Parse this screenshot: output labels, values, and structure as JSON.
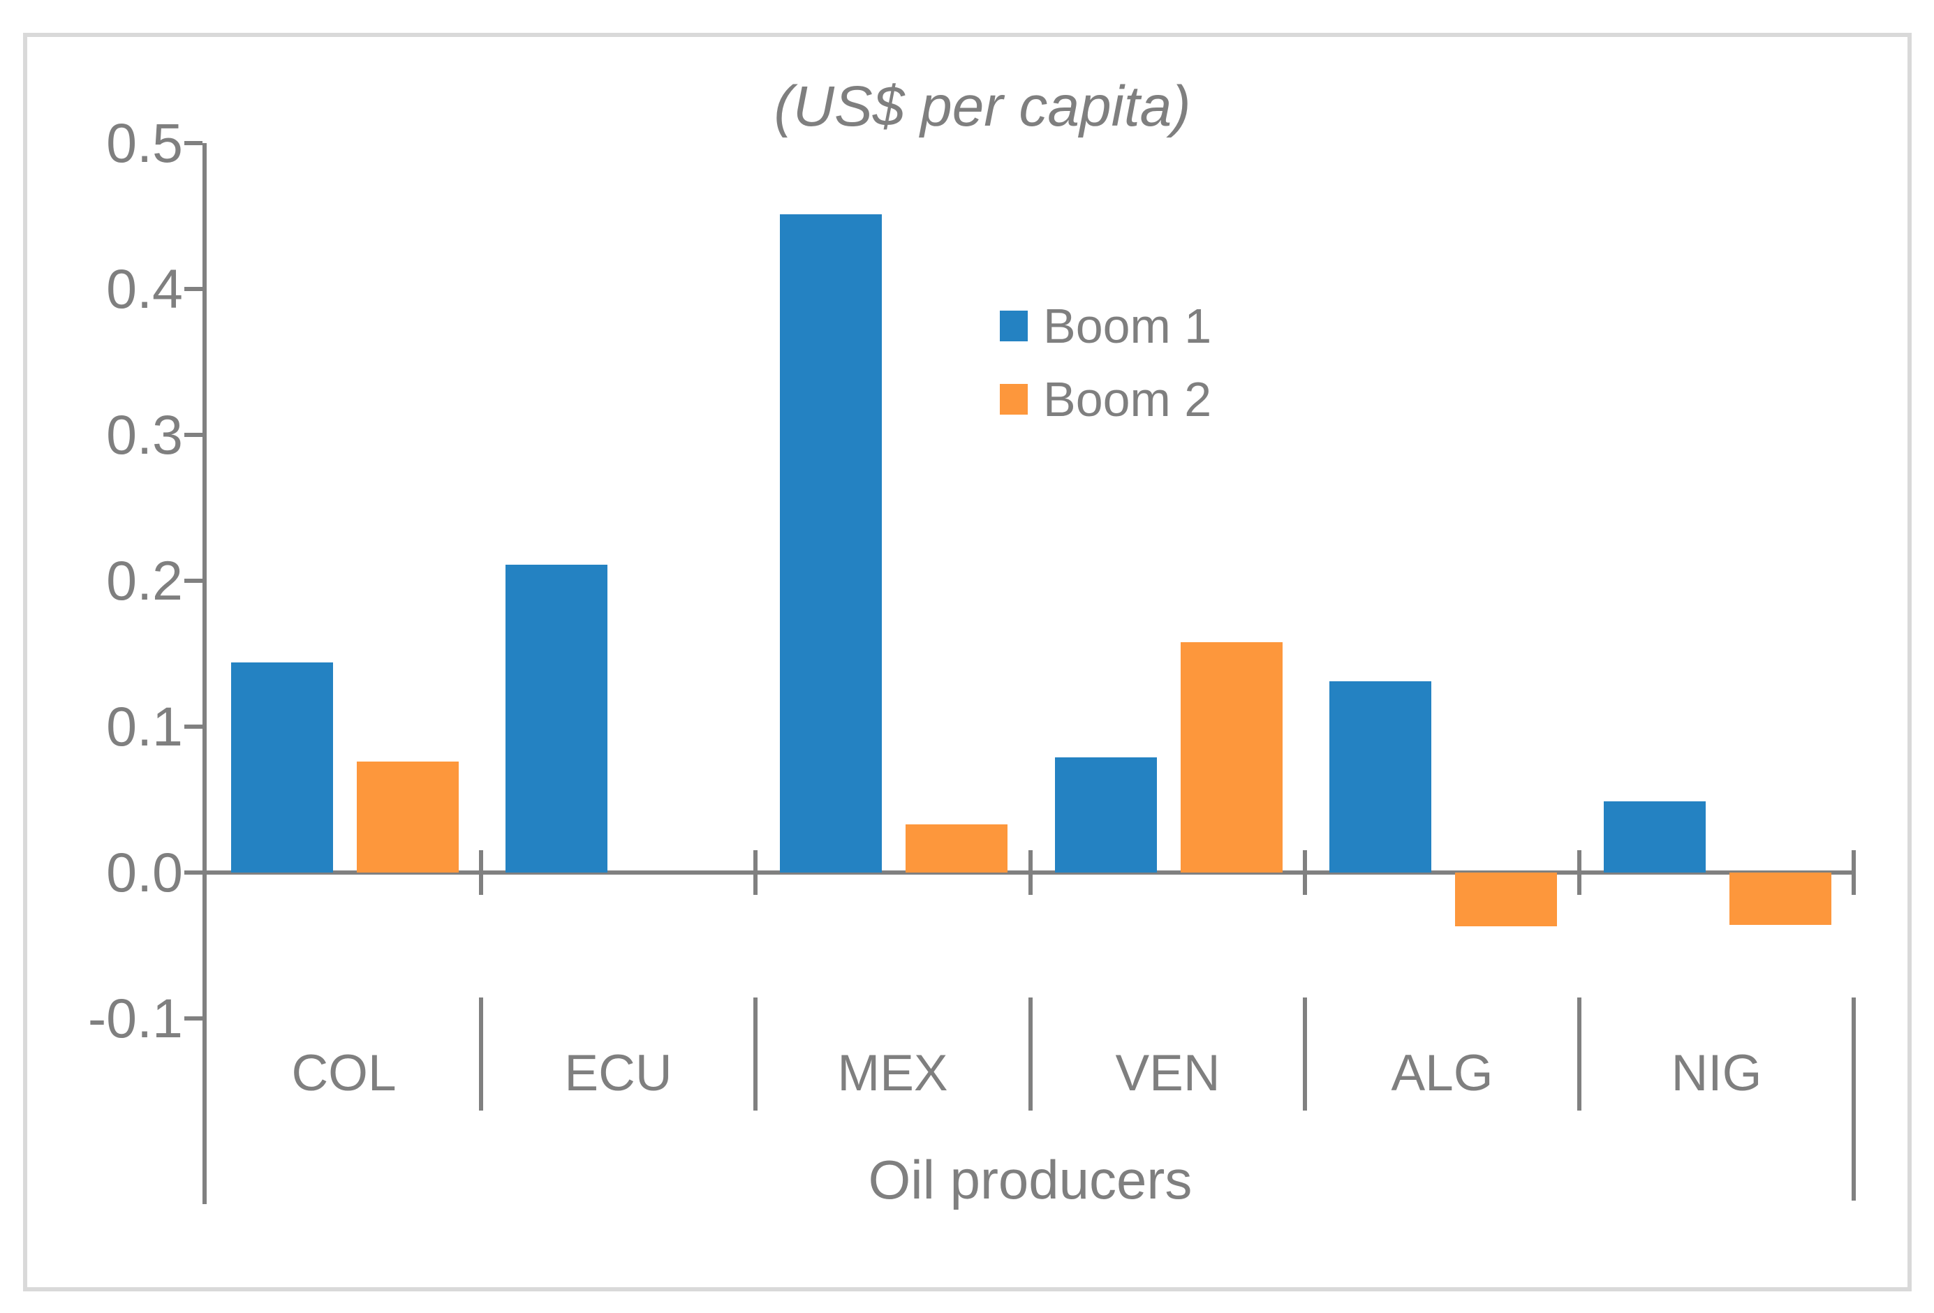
{
  "chart_data": {
    "type": "bar",
    "title": "(US$ per capita)",
    "xlabel": "Oil producers",
    "ylabel": "",
    "categories": [
      "COL",
      "ECU",
      "MEX",
      "VEN",
      "ALG",
      "NIG"
    ],
    "series": [
      {
        "name": "Boom 1",
        "color": "#2482C2",
        "values": [
          0.144,
          0.211,
          0.451,
          0.079,
          0.131,
          0.049
        ]
      },
      {
        "name": "Boom 2",
        "color": "#FD973C",
        "values": [
          0.076,
          0,
          0.033,
          0.158,
          -0.037,
          -0.036
        ]
      }
    ],
    "yticks": [
      0.5,
      0.4,
      0.3,
      0.2,
      0.1,
      0.0,
      -0.1
    ],
    "ytick_labels": [
      "0.5",
      "0.4",
      "0.3",
      "0.2",
      "0.1",
      "0.0",
      "-0.1"
    ],
    "ylim": [
      -0.1,
      0.5
    ],
    "grid": false,
    "legend_position": "inside-upper-center-right",
    "colors": {
      "axis": "#808080",
      "text": "#7F7F7F",
      "frame_border": "#D9D9D9",
      "background": "#FFFFFF"
    }
  }
}
